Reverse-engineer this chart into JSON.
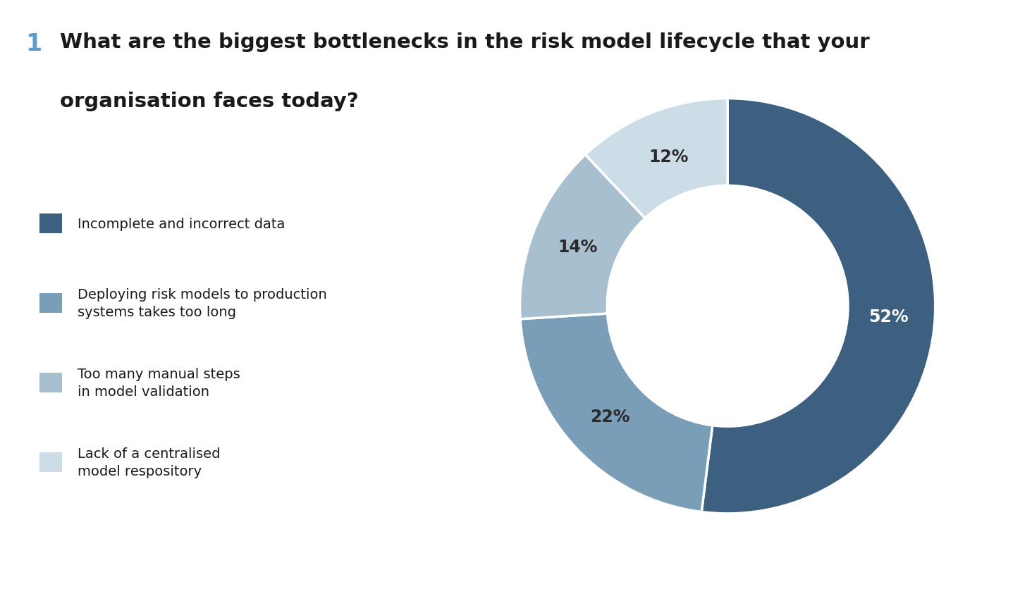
{
  "title_number": "1",
  "title_text_line1": "What are the biggest bottlenecks in the risk model lifecycle that your",
  "title_text_line2": "organisation faces today?",
  "title_number_color": "#5b9bd5",
  "title_text_color": "#1a1a1a",
  "slices": [
    52,
    22,
    14,
    12
  ],
  "labels": [
    "52%",
    "22%",
    "14%",
    "12%"
  ],
  "colors": [
    "#3d6080",
    "#7a9db8",
    "#a8bfcf",
    "#ccdde8"
  ],
  "legend_labels": [
    "Incomplete and incorrect data",
    "Deploying risk models to production\nsystems takes too long",
    "Too many manual steps\nin model validation",
    "Lack of a centralised\nmodel respository"
  ],
  "bg_color": "#ffffff",
  "wedge_edge_color": "#ffffff",
  "label_fontsize": 17,
  "legend_fontsize": 14,
  "title_fontsize": 21,
  "title_number_fontsize": 24
}
